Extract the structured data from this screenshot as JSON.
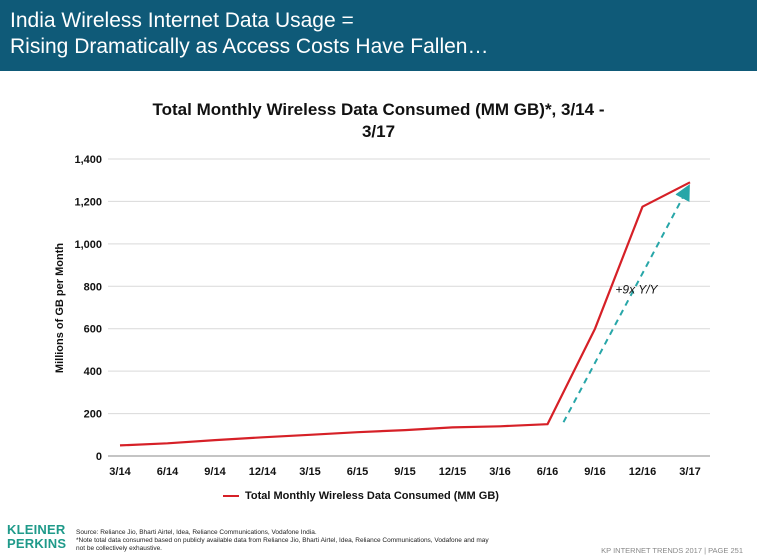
{
  "header": {
    "line1": "India Wireless Internet Data Usage =",
    "line2": "Rising Dramatically as Access Costs Have Fallen…"
  },
  "chart_data": {
    "type": "line",
    "title_line1": "Total Monthly Wireless Data Consumed (MM GB)*, 3/14 -",
    "title_line2": "3/17",
    "ylabel": "Millions of GB per Month",
    "xlabel": "",
    "categories": [
      "3/14",
      "6/14",
      "9/14",
      "12/14",
      "3/15",
      "6/15",
      "9/15",
      "12/15",
      "3/16",
      "6/16",
      "9/16",
      "12/16",
      "3/17"
    ],
    "ylim": [
      0,
      1400
    ],
    "yticks": [
      0,
      200,
      400,
      600,
      800,
      1000,
      1200,
      1400
    ],
    "ytick_labels": [
      "0",
      "200",
      "400",
      "600",
      "800",
      "1,000",
      "1,200",
      "1,400"
    ],
    "grid": true,
    "series": [
      {
        "name": "Total Monthly Wireless Data Consumed (MM GB)",
        "color": "#d62027",
        "values": [
          50,
          60,
          75,
          88,
          100,
          112,
          122,
          135,
          140,
          150,
          600,
          1175,
          1290
        ]
      }
    ],
    "annotation": {
      "text": "+9x Y/Y",
      "arrow_from": {
        "x": "6/16",
        "y": 150
      },
      "arrow_to": {
        "x": "3/17",
        "y": 1265
      },
      "color": "#27a6a8"
    },
    "legend_position": "bottom-center"
  },
  "footer": {
    "logo_line1": "KLEINER",
    "logo_line2": "PERKINS",
    "source_line1": "Source: Reliance Jio, Bharti Airtel, Idea, Reliance Communications, Vodafone India.",
    "source_line2": "*Note total data consumed based on publicly available data from Reliance Jio, Bharti Airtel, Idea, Reliance Communications, Vodafone and may",
    "source_line3": "not be collectively exhaustive.",
    "page_label": "KP INTERNET TRENDS 2017  |  PAGE 251"
  }
}
